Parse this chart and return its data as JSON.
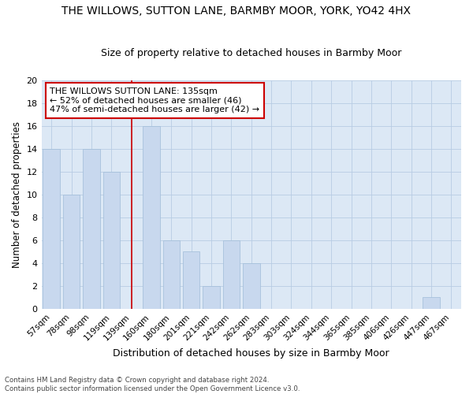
{
  "title": "THE WILLOWS, SUTTON LANE, BARMBY MOOR, YORK, YO42 4HX",
  "subtitle": "Size of property relative to detached houses in Barmby Moor",
  "xlabel": "Distribution of detached houses by size in Barmby Moor",
  "ylabel": "Number of detached properties",
  "categories": [
    "57sqm",
    "78sqm",
    "98sqm",
    "119sqm",
    "139sqm",
    "160sqm",
    "180sqm",
    "201sqm",
    "221sqm",
    "242sqm",
    "262sqm",
    "283sqm",
    "303sqm",
    "324sqm",
    "344sqm",
    "365sqm",
    "385sqm",
    "406sqm",
    "426sqm",
    "447sqm",
    "467sqm"
  ],
  "values": [
    14,
    10,
    14,
    12,
    0,
    16,
    6,
    5,
    2,
    6,
    4,
    0,
    0,
    0,
    0,
    0,
    0,
    0,
    0,
    1,
    0
  ],
  "bar_color": "#c8d8ee",
  "bar_edge_color": "#a0bcd8",
  "marker_index": 4,
  "marker_color": "#cc0000",
  "ylim": [
    0,
    20
  ],
  "yticks": [
    0,
    2,
    4,
    6,
    8,
    10,
    12,
    14,
    16,
    18,
    20
  ],
  "annotation_title": "THE WILLOWS SUTTON LANE: 135sqm",
  "annotation_line1": "← 52% of detached houses are smaller (46)",
  "annotation_line2": "47% of semi-detached houses are larger (42) →",
  "footer_line1": "Contains HM Land Registry data © Crown copyright and database right 2024.",
  "footer_line2": "Contains public sector information licensed under the Open Government Licence v3.0.",
  "bg_color": "#ffffff",
  "plot_bg_color": "#dce8f5",
  "grid_color": "#b8cce4",
  "title_fontsize": 10,
  "subtitle_fontsize": 9
}
